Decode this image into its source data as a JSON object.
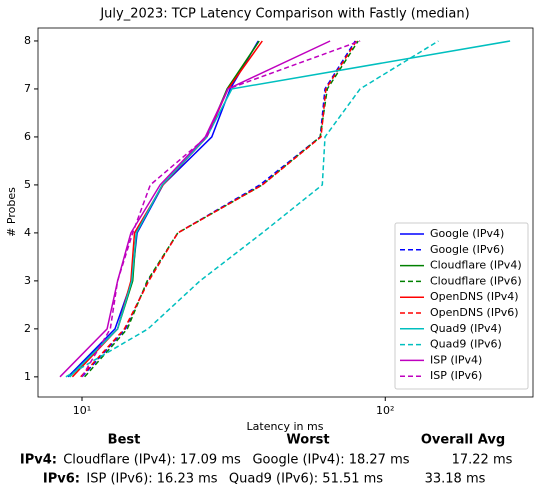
{
  "chart_data": {
    "type": "line",
    "title": "July_2023: TCP Latency Comparison with Fastly (median)",
    "x_label": "Latency in ms",
    "y_label": "# Probes",
    "xscale": "log",
    "xlim": [
      7.16,
      307
    ],
    "xticks": [
      {
        "value": 10,
        "label": "10¹"
      },
      {
        "value": 100,
        "label": "10²"
      }
    ],
    "ylim": [
      0.58,
      8.27
    ],
    "yticks": [
      1,
      2,
      3,
      4,
      5,
      6,
      7,
      8
    ],
    "legend": "lower right",
    "y": [
      1,
      2,
      3,
      4,
      5,
      6,
      7,
      8
    ],
    "series": [
      {
        "name": "Google (IPv4)",
        "color": "#0000ff",
        "dashed": false,
        "x": [
          8.99,
          12.85,
          14.6,
          15.2,
          18.5,
          26.8,
          30.8,
          38.1
        ]
      },
      {
        "name": "Google (IPv6)",
        "color": "#0000ff",
        "dashed": true,
        "x": [
          10.0,
          13.9,
          16.5,
          20.7,
          38.6,
          61.0,
          63.3,
          79.6
        ]
      },
      {
        "name": "Cloudflare (IPv4)",
        "color": "#008000",
        "dashed": false,
        "x": [
          9.1,
          13.1,
          14.7,
          15.1,
          18.4,
          25.8,
          30.1,
          38.4
        ]
      },
      {
        "name": "Cloudflare (IPv6)",
        "color": "#008000",
        "dashed": true,
        "x": [
          10.2,
          14.1,
          16.4,
          20.7,
          39.3,
          61.0,
          64.4,
          81.4
        ]
      },
      {
        "name": "OpenDNS (IPv4)",
        "color": "#ff0000",
        "dashed": false,
        "x": [
          9.3,
          13.1,
          14.5,
          14.9,
          18.5,
          25.8,
          30.3,
          39.3
        ]
      },
      {
        "name": "OpenDNS (IPv6)",
        "color": "#ff0000",
        "dashed": true,
        "x": [
          9.9,
          13.8,
          16.6,
          20.7,
          39.3,
          61.4,
          63.7,
          80.3
        ]
      },
      {
        "name": "Quad9 (IPv4)",
        "color": "#00bfbf",
        "dashed": false,
        "x": [
          9.1,
          13.1,
          14.6,
          15.1,
          18.4,
          25.8,
          31.2,
          258
        ]
      },
      {
        "name": "Quad9 (IPv6)",
        "color": "#00bfbf",
        "dashed": true,
        "x": [
          8.85,
          16.5,
          24.5,
          39.3,
          62.0,
          63.3,
          82.6,
          149.7
        ]
      },
      {
        "name": "ISP (IPv4)",
        "color": "#bf00bf",
        "dashed": false,
        "x": [
          8.46,
          12.1,
          13.1,
          14.5,
          18.1,
          25.5,
          30.3,
          65.8
        ]
      },
      {
        "name": "ISP (IPv6)",
        "color": "#bf00bf",
        "dashed": true,
        "x": [
          10.0,
          12.4,
          13.1,
          14.7,
          16.8,
          25.8,
          30.3,
          82.6
        ]
      }
    ]
  },
  "summary": {
    "headers": [
      "Best",
      "Worst",
      "Overall Avg"
    ],
    "rows": [
      {
        "label": "IPv4:",
        "cells": [
          "Cloudflare (IPv4): 17.09 ms",
          "Google (IPv4): 18.27 ms",
          "17.22 ms"
        ]
      },
      {
        "label": "IPv6:",
        "cells": [
          "ISP (IPv6): 16.23 ms",
          "Quad9 (IPv6): 51.51 ms",
          "33.18 ms"
        ]
      }
    ]
  }
}
